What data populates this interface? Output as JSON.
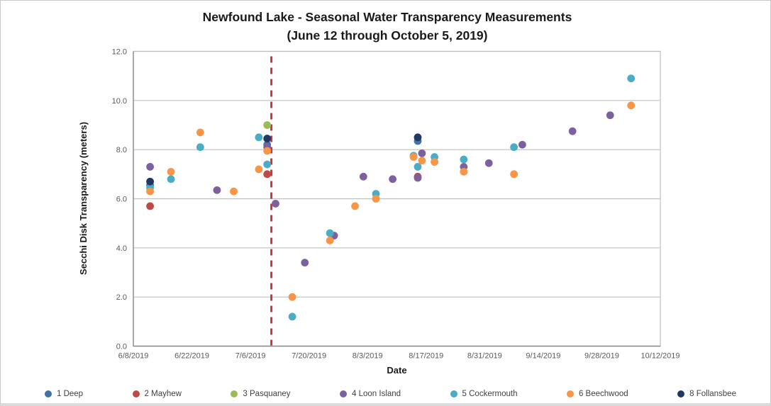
{
  "style": {
    "background": "#ffffff",
    "grid_color": "#BFBFBF",
    "axis_color": "#898989",
    "tick_label_color": "#595959",
    "legend_text_color": "#3f3f3f",
    "title_color": "#1a1a1a"
  },
  "chart_data": {
    "type": "scatter",
    "title": "Newfound Lake - Seasonal Water Transparency Measurements",
    "subtitle": "(June 12 through October 5, 2019)",
    "xlabel": "Date",
    "ylabel": "Secchi Disk Transparency (meters)",
    "x_start": "6/8/2019",
    "x_end": "10/12/2019",
    "ylim": [
      0,
      12
    ],
    "y_tick_step": 2,
    "y_tick_labels": [
      "0.0",
      "2.0",
      "4.0",
      "6.0",
      "8.0",
      "10.0",
      "12.0"
    ],
    "x_tick_labels": [
      "6/8/2019",
      "6/22/2019",
      "7/6/2019",
      "7/20/2019",
      "8/3/2019",
      "8/17/2019",
      "8/31/2019",
      "9/14/2019",
      "9/28/2019",
      "10/12/2019"
    ],
    "grid": "horizontal",
    "legend_position": "bottom",
    "annotation": {
      "type": "vertical-dashed-line",
      "x_date": "7/11/2019",
      "color": "#C23B3B"
    },
    "series": [
      {
        "name": "1 Deep",
        "color": "#4472A8",
        "points": [
          [
            "6/12/2019",
            6.55
          ],
          [
            "7/10/2019",
            8.2
          ],
          [
            "8/15/2019",
            8.35
          ]
        ]
      },
      {
        "name": "2 Mayhew",
        "color": "#BE4B48",
        "points": [
          [
            "6/12/2019",
            5.7
          ],
          [
            "7/10/2019",
            7.0
          ],
          [
            "8/15/2019",
            6.9
          ]
        ]
      },
      {
        "name": "3 Pasquaney",
        "color": "#9BBB59",
        "points": [
          [
            "7/10/2019",
            9.0
          ]
        ]
      },
      {
        "name": "4 Loon Island",
        "color": "#7D60A0",
        "points": [
          [
            "6/12/2019",
            7.3
          ],
          [
            "6/28/2019",
            6.35
          ],
          [
            "7/10/2019",
            8.1
          ],
          [
            "7/12/2019",
            5.8
          ],
          [
            "7/19/2019",
            3.4
          ],
          [
            "7/26/2019",
            4.5
          ],
          [
            "8/2/2019",
            6.9
          ],
          [
            "8/9/2019",
            6.8
          ],
          [
            "8/15/2019",
            6.85
          ],
          [
            "8/16/2019",
            7.85
          ],
          [
            "8/26/2019",
            7.3
          ],
          [
            "9/1/2019",
            7.45
          ],
          [
            "9/9/2019",
            8.2
          ],
          [
            "9/21/2019",
            8.75
          ],
          [
            "9/30/2019",
            9.4
          ]
        ]
      },
      {
        "name": "5 Cockermouth",
        "color": "#4AACC5",
        "points": [
          [
            "6/12/2019",
            6.45
          ],
          [
            "6/17/2019",
            6.8
          ],
          [
            "6/24/2019",
            8.1
          ],
          [
            "7/8/2019",
            8.5
          ],
          [
            "7/10/2019",
            7.4
          ],
          [
            "7/16/2019",
            1.2
          ],
          [
            "7/25/2019",
            4.6
          ],
          [
            "8/5/2019",
            6.2
          ],
          [
            "8/14/2019",
            7.75
          ],
          [
            "8/15/2019",
            7.3
          ],
          [
            "8/19/2019",
            7.7
          ],
          [
            "8/26/2019",
            7.6
          ],
          [
            "9/7/2019",
            8.1
          ],
          [
            "10/5/2019",
            10.9
          ]
        ]
      },
      {
        "name": "6 Beechwood",
        "color": "#F79646",
        "points": [
          [
            "6/12/2019",
            6.3
          ],
          [
            "6/17/2019",
            7.1
          ],
          [
            "6/24/2019",
            8.7
          ],
          [
            "7/2/2019",
            6.3
          ],
          [
            "7/8/2019",
            7.2
          ],
          [
            "7/10/2019",
            7.95
          ],
          [
            "7/16/2019",
            2.0
          ],
          [
            "7/25/2019",
            4.3
          ],
          [
            "7/31/2019",
            5.7
          ],
          [
            "8/5/2019",
            6.0
          ],
          [
            "8/14/2019",
            7.7
          ],
          [
            "8/16/2019",
            7.55
          ],
          [
            "8/19/2019",
            7.5
          ],
          [
            "8/26/2019",
            7.1
          ],
          [
            "9/7/2019",
            7.0
          ],
          [
            "10/5/2019",
            9.8
          ]
        ]
      },
      {
        "name": "8 Follansbee",
        "color": "#1F3864",
        "points": [
          [
            "6/12/2019",
            6.7
          ],
          [
            "7/10/2019",
            8.45
          ],
          [
            "8/15/2019",
            8.5
          ]
        ]
      }
    ]
  }
}
